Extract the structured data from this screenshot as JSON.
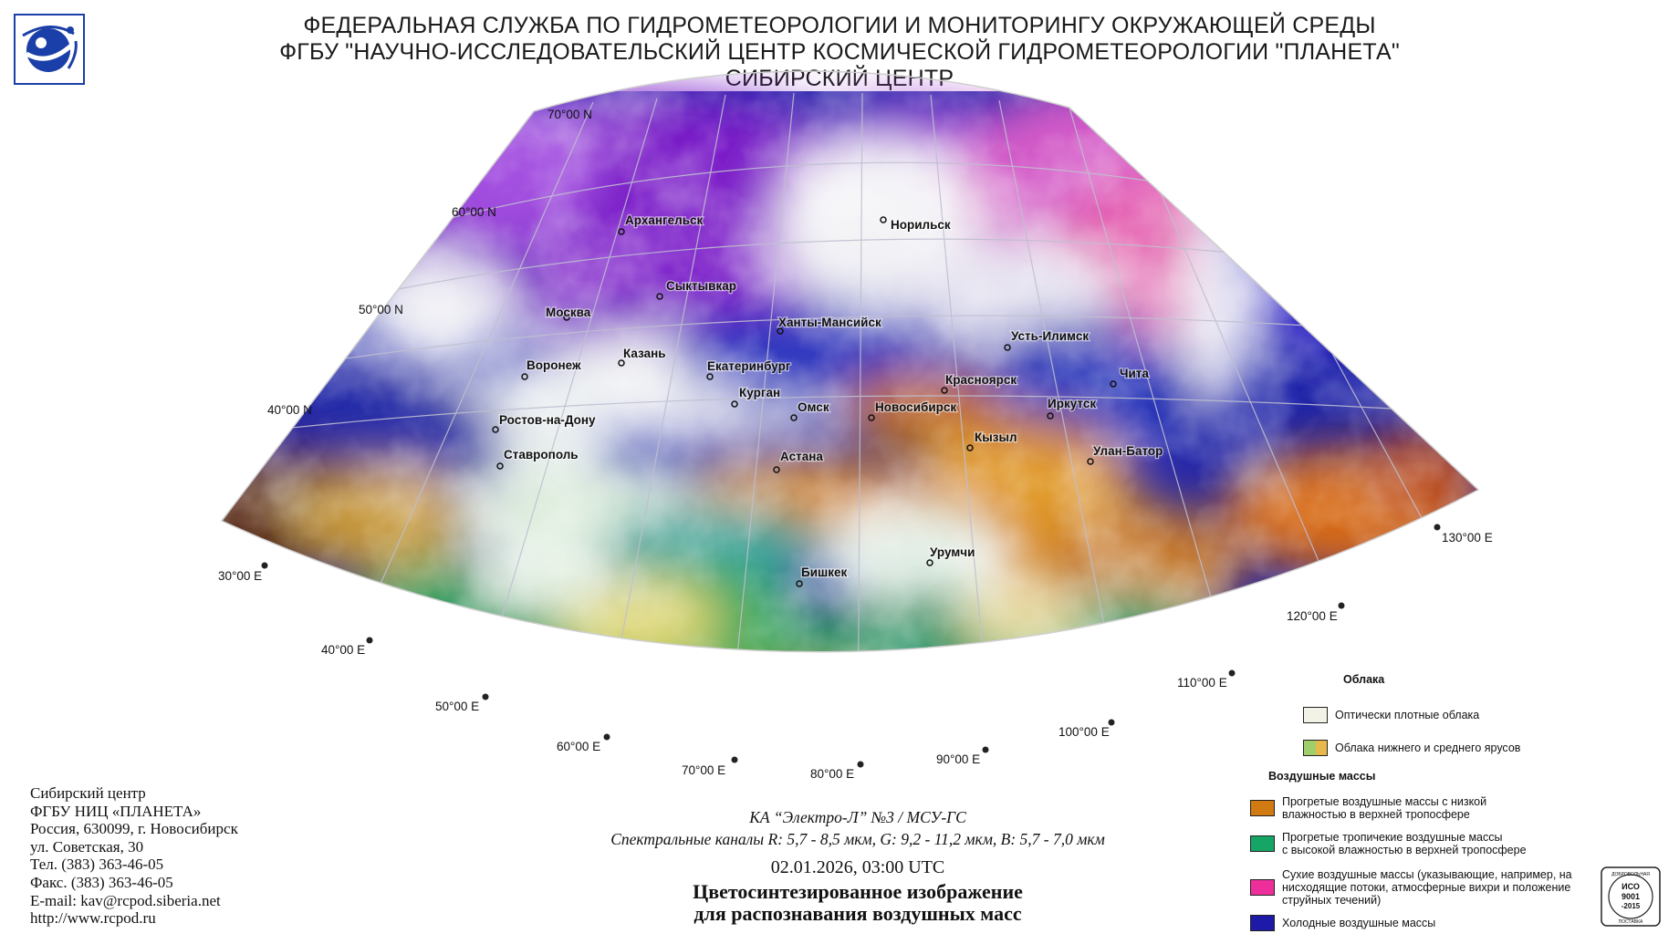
{
  "header": {
    "line1": "ФЕДЕРАЛЬНАЯ СЛУЖБА ПО ГИДРОМЕТЕОРОЛОГИИ И МОНИТОРИНГУ ОКРУЖАЮЩЕЙ СРЕДЫ",
    "line2": "ФГБУ \"НАУЧНО-ИССЛЕДОВАТЕЛЬСКИЙ ЦЕНТР КОСМИЧЕСКОЙ ГИДРОМЕТЕОРОЛОГИИ \"ПЛАНЕТА\"",
    "line3": "СИБИРСКИЙ ЦЕНТР"
  },
  "logo": {
    "icon": "planeta-logo-icon",
    "color": "#1b3fa8"
  },
  "map": {
    "latitude_labels": [
      "70°00 N",
      "60°00 N",
      "50°00 N",
      "40°00 N"
    ],
    "longitude_labels": [
      "30°00 E",
      "40°00 E",
      "50°00 E",
      "60°00 E",
      "70°00 E",
      "80°00 E",
      "90°00 E",
      "100°00 E",
      "110°00 E",
      "120°00 E",
      "130°00 E"
    ],
    "cities": [
      "Архангельск",
      "Норильск",
      "Сыктывкар",
      "Москва",
      "Ханты-Мансийск",
      "Усть-Илимск",
      "Казань",
      "Воронеж",
      "Екатеринбург",
      "Красноярск",
      "Чита",
      "Курган",
      "Омск",
      "Новосибирск",
      "Иркутск",
      "Ростов-на-Дону",
      "Кызыл",
      "Улан-Батор",
      "Ставрополь",
      "Астана",
      "Урумчи",
      "Бишкек"
    ]
  },
  "contact": [
    "Сибирский центр",
    "ФГБУ НИЦ «ПЛАНЕТА»",
    "Россия, 630099, г. Новосибирск",
    "ул. Советская, 30",
    "Тел. (383) 363-46-05",
    "Факс. (383) 363-46-05",
    "E-mail: kav@rcpod.siberia.net",
    "http://www.rcpod.ru"
  ],
  "satellite": {
    "name": "КА “Электро-Л” №3 / МСУ-ГС",
    "channels": "Спектральные каналы R: 5,7 - 8,5 мкм, G: 9,2 - 11,2 мкм, B: 5,7 - 7,0 мкм",
    "datetime": "02.01.2026, 03:00 UTC",
    "product_line1": "Цветосинтезированное изображение",
    "product_line2": "для распознавания воздушных масс"
  },
  "legend": {
    "clouds_heading": "Облака",
    "dense_clouds": {
      "label": "Оптически плотные облака",
      "color": "#f2f2e6"
    },
    "low_mid_clouds": {
      "label": "Облака нижнего и среднего ярусов",
      "color_left": "#9fcf6a",
      "color_right": "#e7b84a"
    },
    "air_masses_heading": "Воздушные массы",
    "warm_low_humidity": {
      "line1": "Прогретые воздушные массы с низкой",
      "line2": "влажностью в верхней тропосфере",
      "color": "#d27a12"
    },
    "warm_tropical": {
      "line1": "Прогретые тропичекие воздушные массы",
      "line2": "с высокой влажностью в верхней тропосфере",
      "color": "#15a565"
    },
    "dry_air": {
      "line1": "Сухие воздушные массы (указывающие, например, на",
      "line2": "нисходящие потоки, атмосферные вихри и положение",
      "line3": "струйных течений)",
      "color": "#ee2f9b"
    },
    "cold_air": {
      "label": "Холодные воздушные массы",
      "color": "#1c1aa6"
    }
  },
  "iso_badge": {
    "line1": "ДОБРОВОЛЬНАЯ",
    "line2": "ИСО",
    "line3": "9001",
    "line4": "-2015",
    "line5": "ПОСТАВКА"
  }
}
